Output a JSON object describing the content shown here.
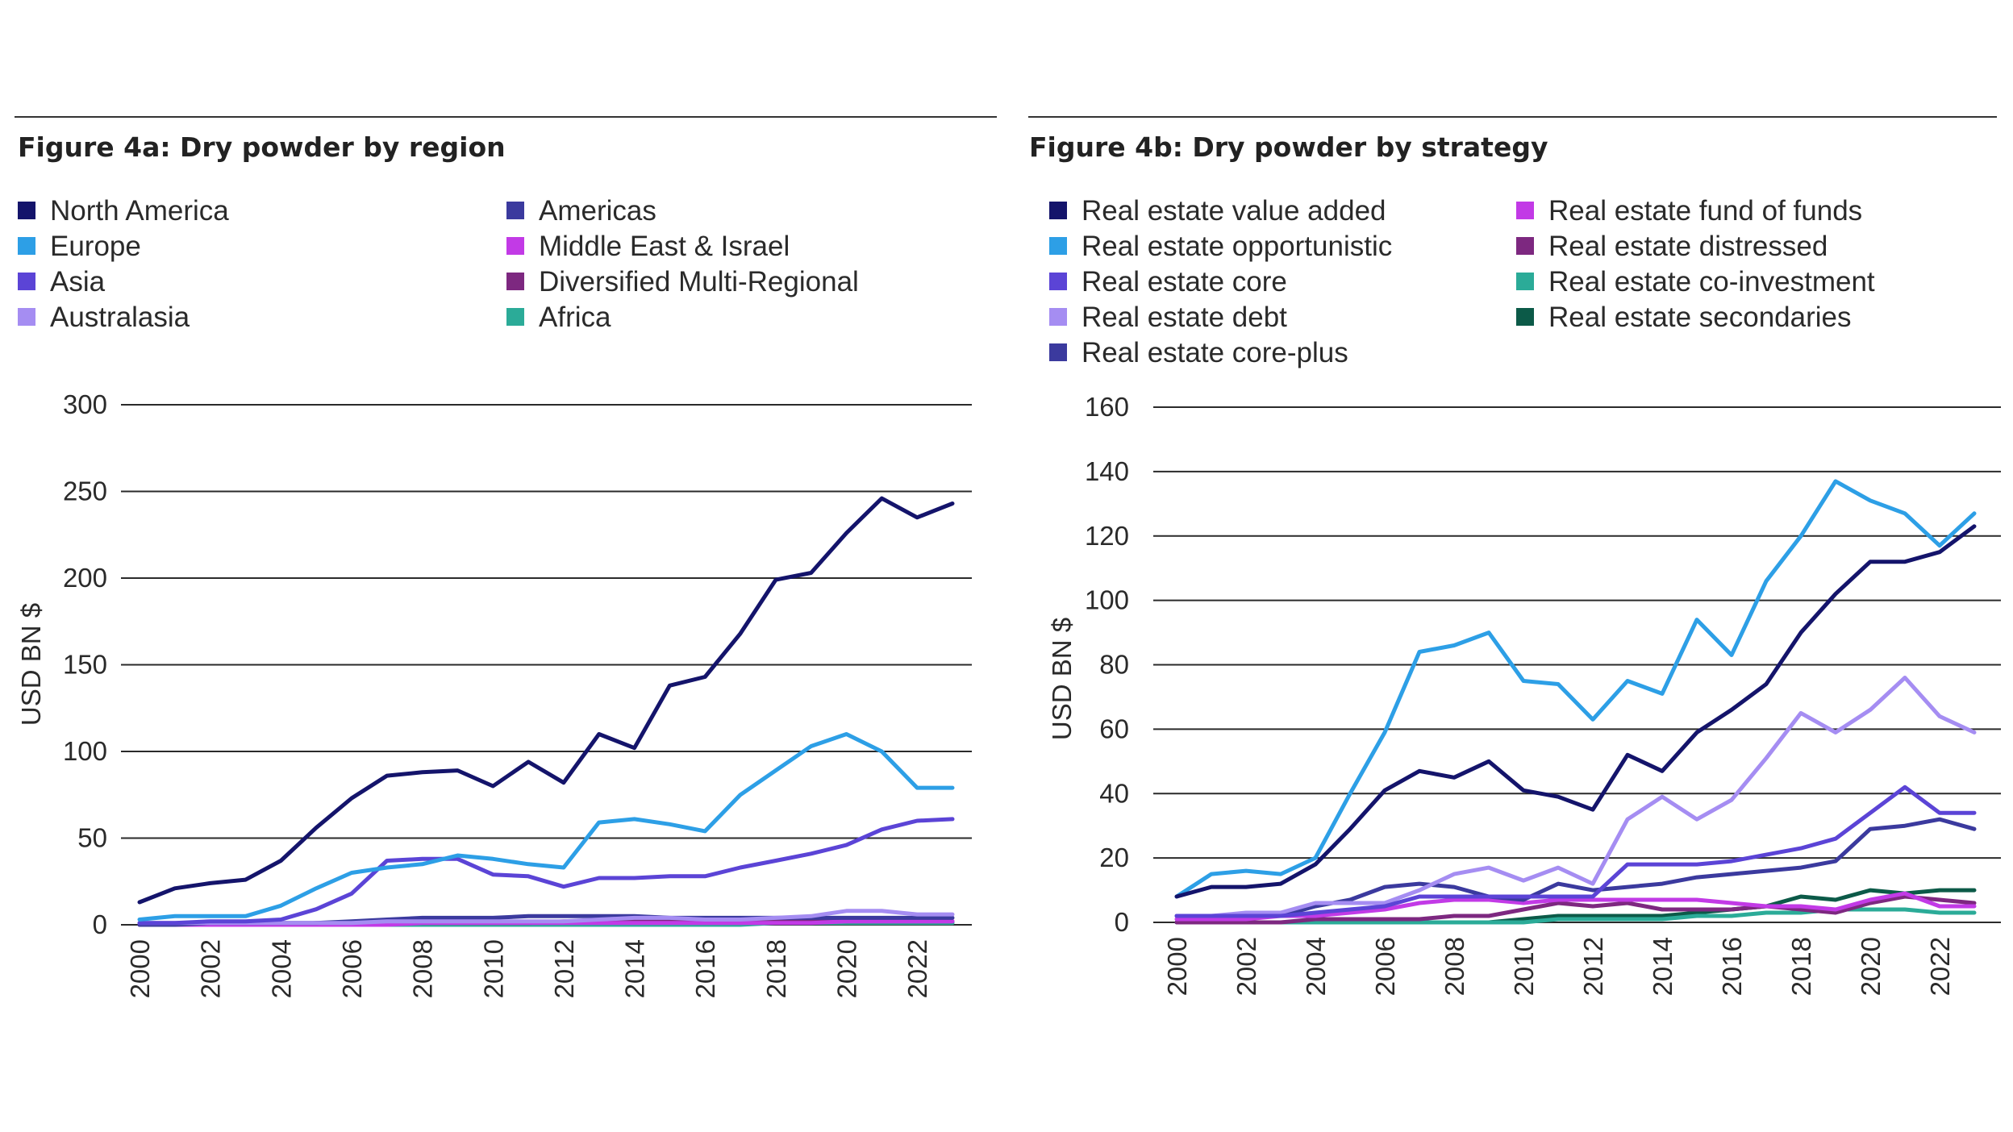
{
  "chart_data": [
    {
      "type": "line",
      "title": "Figure 4a: Dry powder by region",
      "xlabel": "",
      "ylabel": "USD BN $",
      "ylim": [
        0,
        300
      ],
      "yticks": [
        0,
        50,
        100,
        150,
        200,
        250,
        300
      ],
      "xticks": [
        2000,
        2002,
        2004,
        2006,
        2008,
        2010,
        2012,
        2014,
        2016,
        2018,
        2020,
        2022
      ],
      "x": [
        2000,
        2001,
        2002,
        2003,
        2004,
        2005,
        2006,
        2007,
        2008,
        2009,
        2010,
        2011,
        2012,
        2013,
        2014,
        2015,
        2016,
        2017,
        2018,
        2019,
        2020,
        2021,
        2022,
        2023
      ],
      "legend": {
        "columns": 2
      },
      "series": [
        {
          "name": "North America",
          "color": "#14146b",
          "values": [
            13,
            21,
            24,
            26,
            37,
            56,
            73,
            86,
            88,
            89,
            80,
            94,
            82,
            110,
            102,
            138,
            143,
            168,
            199,
            203,
            226,
            246,
            235,
            243
          ]
        },
        {
          "name": "Europe",
          "color": "#2d9fe6",
          "values": [
            3,
            5,
            5,
            5,
            11,
            21,
            30,
            33,
            35,
            40,
            38,
            35,
            33,
            59,
            61,
            58,
            54,
            75,
            89,
            103,
            110,
            100,
            79,
            79
          ]
        },
        {
          "name": "Asia",
          "color": "#5b44d6",
          "values": [
            1,
            1,
            2,
            2,
            3,
            9,
            18,
            37,
            38,
            38,
            29,
            28,
            22,
            27,
            27,
            28,
            28,
            33,
            37,
            41,
            46,
            55,
            60,
            61
          ]
        },
        {
          "name": "Australasia",
          "color": "#a58df2",
          "values": [
            1,
            1,
            1,
            1,
            1,
            1,
            1,
            2,
            2,
            2,
            2,
            2,
            2,
            3,
            4,
            4,
            3,
            3,
            4,
            5,
            8,
            8,
            6,
            6
          ]
        },
        {
          "name": "Americas",
          "color": "#3b3a9e",
          "values": [
            0,
            0,
            1,
            1,
            1,
            1,
            2,
            3,
            4,
            4,
            4,
            5,
            5,
            5,
            5,
            4,
            4,
            4,
            4,
            4,
            4,
            4,
            4,
            4
          ]
        },
        {
          "name": "Middle East & Israel",
          "color": "#c23ae6",
          "values": [
            0,
            0,
            0,
            0,
            0,
            0,
            0,
            0,
            1,
            1,
            1,
            1,
            1,
            1,
            1,
            1,
            1,
            1,
            1,
            1,
            2,
            2,
            2,
            2
          ]
        },
        {
          "name": "Diversified Multi-Regional",
          "color": "#7d2880",
          "values": [
            0,
            0,
            0,
            0,
            0,
            1,
            1,
            1,
            1,
            1,
            1,
            1,
            2,
            2,
            2,
            2,
            2,
            2,
            2,
            2,
            2,
            2,
            2,
            2
          ]
        },
        {
          "name": "Africa",
          "color": "#2bab98",
          "values": [
            0,
            0,
            0,
            0,
            0,
            0,
            0,
            0,
            0,
            0,
            0,
            0,
            0,
            0,
            0,
            0,
            0,
            0,
            1,
            1,
            1,
            1,
            1,
            1
          ]
        }
      ]
    },
    {
      "type": "line",
      "title": "Figure 4b: Dry powder by strategy",
      "xlabel": "",
      "ylabel": "USD BN $",
      "ylim": [
        0,
        160
      ],
      "yticks": [
        0,
        20,
        40,
        60,
        80,
        100,
        120,
        140,
        160
      ],
      "xticks": [
        2000,
        2002,
        2004,
        2006,
        2008,
        2010,
        2012,
        2014,
        2016,
        2018,
        2020,
        2022
      ],
      "x": [
        2000,
        2001,
        2002,
        2003,
        2004,
        2005,
        2006,
        2007,
        2008,
        2009,
        2010,
        2011,
        2012,
        2013,
        2014,
        2015,
        2016,
        2017,
        2018,
        2019,
        2020,
        2021,
        2022,
        2023
      ],
      "legend": {
        "columns": 2
      },
      "series": [
        {
          "name": "Real estate value added",
          "color": "#14146b",
          "values": [
            8,
            11,
            11,
            12,
            18,
            29,
            41,
            47,
            45,
            50,
            41,
            39,
            35,
            52,
            47,
            59,
            66,
            74,
            90,
            102,
            112,
            112,
            115,
            123
          ]
        },
        {
          "name": "Real estate opportunistic",
          "color": "#2d9fe6",
          "values": [
            8,
            15,
            16,
            15,
            20,
            40,
            59,
            84,
            86,
            90,
            75,
            74,
            63,
            75,
            71,
            94,
            83,
            106,
            120,
            137,
            131,
            127,
            117,
            127
          ]
        },
        {
          "name": "Real estate core",
          "color": "#5b44d6",
          "values": [
            2,
            2,
            2,
            2,
            3,
            4,
            5,
            8,
            8,
            8,
            8,
            8,
            8,
            18,
            18,
            18,
            19,
            21,
            23,
            26,
            34,
            42,
            34,
            34
          ]
        },
        {
          "name": "Real estate debt",
          "color": "#a58df2",
          "values": [
            2,
            2,
            3,
            3,
            6,
            6,
            6,
            10,
            15,
            17,
            13,
            17,
            12,
            32,
            39,
            32,
            38,
            51,
            65,
            59,
            66,
            76,
            64,
            59
          ]
        },
        {
          "name": "Real estate core-plus",
          "color": "#3b3a9e",
          "values": [
            2,
            2,
            2,
            2,
            5,
            7,
            11,
            12,
            11,
            8,
            7,
            12,
            10,
            11,
            12,
            14,
            15,
            16,
            17,
            19,
            29,
            30,
            32,
            29
          ]
        },
        {
          "name": "Real estate fund of funds",
          "color": "#c23ae6",
          "values": [
            1,
            1,
            1,
            2,
            2,
            3,
            4,
            6,
            7,
            7,
            6,
            7,
            7,
            7,
            7,
            7,
            6,
            5,
            5,
            4,
            7,
            9,
            5,
            5
          ]
        },
        {
          "name": "Real estate distressed",
          "color": "#7d2880",
          "values": [
            0,
            0,
            0,
            0,
            1,
            1,
            1,
            1,
            2,
            2,
            4,
            6,
            5,
            6,
            4,
            4,
            4,
            5,
            4,
            3,
            6,
            8,
            7,
            6
          ]
        },
        {
          "name": "Real estate co-investment",
          "color": "#2bab98",
          "values": [
            0,
            0,
            0,
            0,
            0,
            0,
            0,
            0,
            0,
            0,
            0,
            1,
            1,
            1,
            1,
            2,
            2,
            3,
            3,
            4,
            4,
            4,
            3,
            3
          ]
        },
        {
          "name": "Real estate secondaries",
          "color": "#0c5a48",
          "values": [
            0,
            0,
            0,
            0,
            0,
            0,
            0,
            0,
            0,
            0,
            1,
            2,
            2,
            2,
            2,
            3,
            4,
            5,
            8,
            7,
            10,
            9,
            10,
            10
          ]
        }
      ]
    }
  ]
}
